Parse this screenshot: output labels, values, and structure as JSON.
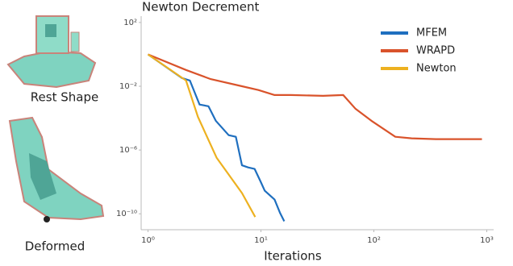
{
  "chart_data": {
    "type": "line",
    "title": "Newton Decrement",
    "x_label": "Iterations",
    "xscale": "log",
    "yscale": "log",
    "xlim": [
      0.87,
      1150
    ],
    "ylim": [
      1e-11,
      251
    ],
    "xticks": [
      {
        "value": 1,
        "label": "10⁰"
      },
      {
        "value": 10,
        "label": "10¹"
      },
      {
        "value": 100,
        "label": "10²"
      },
      {
        "value": 1000,
        "label": "10³"
      }
    ],
    "yticks": [
      {
        "value": 100,
        "label": "10²"
      },
      {
        "value": 0.01,
        "label": "10⁻²"
      },
      {
        "value": 1e-06,
        "label": "10⁻⁶"
      },
      {
        "value": 1e-10,
        "label": "10⁻¹⁰"
      }
    ],
    "grid": false,
    "legend": "upper right",
    "series": [
      {
        "name": "MFEM",
        "color": "#1f6fbf",
        "x": [
          1,
          2,
          2.35,
          2.86,
          3.43,
          3.98,
          5.18,
          6.0,
          6.8,
          7.7,
          8.8,
          9.9,
          10.8,
          13.2,
          14.8,
          16.1
        ],
        "values": [
          1,
          0.033,
          0.023,
          0.00071,
          0.00056,
          6.9e-05,
          8.5e-06,
          6.8e-06,
          1.1e-07,
          8.1e-08,
          6.5e-08,
          1.1e-08,
          2.8e-09,
          7.8e-10,
          1.1e-10,
          3.4e-11
        ]
      },
      {
        "name": "WRAPD",
        "color": "#d9532b",
        "x": [
          1,
          2.17,
          3.55,
          6.8,
          9.5,
          13.2,
          18.4,
          35.5,
          53.5,
          68.5,
          95,
          155,
          216,
          355,
          906
        ],
        "values": [
          1,
          0.105,
          0.029,
          0.01,
          0.0058,
          0.0028,
          0.0028,
          0.0025,
          0.0028,
          0.0004,
          6.9e-05,
          6.8e-06,
          5.4e-06,
          4.8e-06,
          4.8e-06
        ]
      },
      {
        "name": "Newton",
        "color": "#edb120",
        "x": [
          1,
          2.17,
          2.77,
          4.05,
          6.8,
          8.9
        ],
        "values": [
          1,
          0.023,
          0.00012,
          3.3e-07,
          2e-09,
          6.3e-11
        ]
      }
    ]
  },
  "panels": {
    "rest": "Rest Shape",
    "deformed": "Deformed"
  }
}
